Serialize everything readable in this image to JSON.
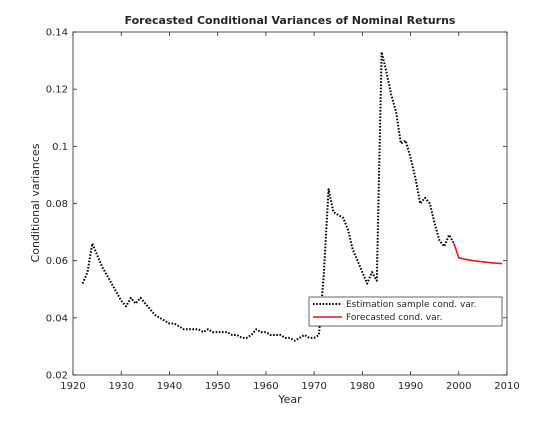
{
  "chart_data": {
    "type": "line",
    "title": "Forecasted Conditional Variances of Nominal Returns",
    "xlabel": "Year",
    "ylabel": "Conditional variances",
    "xlim": [
      1920,
      2010
    ],
    "ylim": [
      0.02,
      0.14
    ],
    "xticks": [
      1920,
      1930,
      1940,
      1950,
      1960,
      1970,
      1980,
      1990,
      2000,
      2010
    ],
    "yticks": [
      0.02,
      0.04,
      0.06,
      0.08,
      0.1,
      0.12,
      0.14
    ],
    "xtick_labels": [
      "1920",
      "1930",
      "1940",
      "1950",
      "1960",
      "1970",
      "1980",
      "1990",
      "2000",
      "2010"
    ],
    "ytick_labels": [
      "0.02",
      "0.04",
      "0.06",
      "0.08",
      "0.1",
      "0.12",
      "0.14"
    ],
    "grid": false,
    "legend": "lower-right",
    "series": [
      {
        "name": "Estimation sample cond. var.",
        "color": "#000000",
        "style": "dotted",
        "x": [
          1922,
          1923,
          1924,
          1925,
          1926,
          1927,
          1928,
          1929,
          1930,
          1931,
          1932,
          1933,
          1934,
          1935,
          1936,
          1937,
          1938,
          1939,
          1940,
          1941,
          1942,
          1943,
          1944,
          1945,
          1946,
          1947,
          1948,
          1949,
          1950,
          1951,
          1952,
          1953,
          1954,
          1955,
          1956,
          1957,
          1958,
          1959,
          1960,
          1961,
          1962,
          1963,
          1964,
          1965,
          1966,
          1967,
          1968,
          1969,
          1970,
          1971,
          1972,
          1973,
          1974,
          1975,
          1976,
          1977,
          1978,
          1979,
          1980,
          1981,
          1982,
          1983,
          1984,
          1985,
          1986,
          1987,
          1988,
          1989,
          1990,
          1991,
          1992,
          1993,
          1994,
          1995,
          1996,
          1997,
          1998,
          1999
        ],
        "y": [
          0.052,
          0.056,
          0.066,
          0.062,
          0.058,
          0.055,
          0.052,
          0.049,
          0.046,
          0.044,
          0.047,
          0.045,
          0.047,
          0.045,
          0.043,
          0.041,
          0.04,
          0.039,
          0.038,
          0.038,
          0.037,
          0.036,
          0.036,
          0.036,
          0.036,
          0.035,
          0.036,
          0.035,
          0.035,
          0.035,
          0.035,
          0.034,
          0.034,
          0.033,
          0.033,
          0.034,
          0.036,
          0.035,
          0.035,
          0.034,
          0.034,
          0.034,
          0.033,
          0.033,
          0.032,
          0.033,
          0.034,
          0.033,
          0.033,
          0.034,
          0.055,
          0.085,
          0.077,
          0.076,
          0.075,
          0.071,
          0.064,
          0.06,
          0.056,
          0.052,
          0.056,
          0.053,
          0.133,
          0.126,
          0.118,
          0.112,
          0.101,
          0.102,
          0.096,
          0.089,
          0.08,
          0.082,
          0.08,
          0.073,
          0.067,
          0.065,
          0.069,
          0.066
        ]
      },
      {
        "name": "Forecasted cond. var.",
        "color": "#e8141c",
        "style": "solid",
        "x": [
          1999,
          2000,
          2001,
          2002,
          2003,
          2004,
          2005,
          2006,
          2007,
          2008,
          2009
        ],
        "y": [
          0.066,
          0.061,
          0.0606,
          0.0603,
          0.06,
          0.0598,
          0.0596,
          0.0594,
          0.0592,
          0.0591,
          0.059
        ]
      }
    ]
  }
}
